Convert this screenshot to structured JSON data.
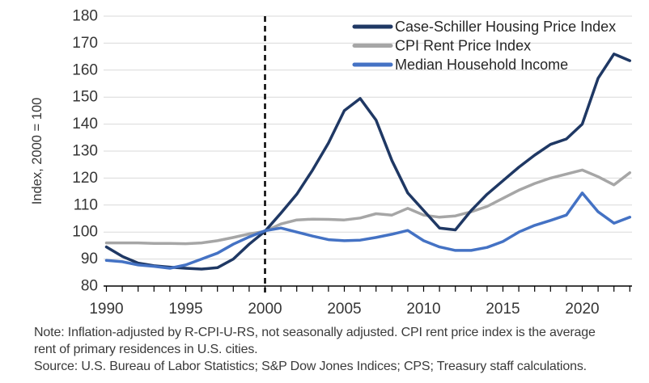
{
  "chart_data": {
    "type": "line",
    "title": "",
    "xlabel": "",
    "ylabel": "Index, 2000 = 100",
    "xlim": [
      1990,
      2023
    ],
    "ylim": [
      80,
      180
    ],
    "x_tick_labels": [
      1990,
      1995,
      2000,
      2005,
      2010,
      2015,
      2020
    ],
    "y_tick_labels": [
      80,
      90,
      100,
      110,
      120,
      130,
      140,
      150,
      160,
      170,
      180
    ],
    "grid": true,
    "legend_position": "top-right-inside",
    "reference_line": {
      "orientation": "vertical",
      "style": "dashed",
      "x": 2000
    },
    "x": [
      1990,
      1991,
      1992,
      1993,
      1994,
      1995,
      1996,
      1997,
      1998,
      1999,
      2000,
      2001,
      2002,
      2003,
      2004,
      2005,
      2006,
      2007,
      2008,
      2009,
      2010,
      2011,
      2012,
      2013,
      2014,
      2015,
      2016,
      2017,
      2018,
      2019,
      2020,
      2021,
      2022,
      2023
    ],
    "series": [
      {
        "name": "Case-Schiller Housing Price Index",
        "color": "#1f3864",
        "values": [
          94.5,
          91,
          88.5,
          87.5,
          87,
          86.6,
          86.3,
          86.8,
          90,
          95.5,
          100.3,
          107,
          114,
          123,
          133,
          145,
          149.5,
          141.5,
          126.5,
          114.5,
          108,
          101.5,
          100.8,
          108,
          114,
          119,
          124,
          128.5,
          132.5,
          134.5,
          140,
          157,
          166,
          163.5
        ]
      },
      {
        "name": "CPI Rent Price Index",
        "color": "#a6a6a6",
        "values": [
          96,
          96,
          96,
          95.8,
          95.8,
          95.7,
          96,
          96.8,
          98,
          99.3,
          100.3,
          103,
          104.5,
          104.8,
          104.7,
          104.5,
          105.2,
          106.8,
          106.3,
          108.8,
          106.3,
          105.5,
          106,
          107.5,
          109.5,
          112.5,
          115.5,
          118,
          120,
          121.5,
          123,
          120.5,
          117.5,
          122
        ]
      },
      {
        "name": "Median Household Income",
        "color": "#4472c4",
        "values": [
          89.5,
          89,
          87.8,
          87.3,
          86.6,
          87.8,
          90,
          92.2,
          95.5,
          98.2,
          100.5,
          101.5,
          100,
          98.5,
          97.2,
          96.8,
          97,
          98,
          99.2,
          100.6,
          96.8,
          94.5,
          93.2,
          93.2,
          94.3,
          96.5,
          100,
          102.5,
          104.3,
          106.3,
          114.5,
          107.5,
          103.3,
          105.5
        ]
      }
    ]
  },
  "notes": {
    "line1": "Note: Inflation-adjusted by R-CPI-U-RS, not seasonally adjusted. CPI rent price index is the average",
    "line2": "rent of primary residences in U.S. cities.",
    "line3": "Source: U.S. Bureau of Labor Statistics; S&P Dow Jones Indices; CPS; Treasury staff calculations."
  },
  "colors": {
    "background": "#ffffff",
    "gridline": "#d9d9d9",
    "axis": "#000000",
    "dashed_line": "#000000",
    "tick_label": "#363636",
    "legend_text": "#262626",
    "note_text": "#3a3a3a"
  }
}
